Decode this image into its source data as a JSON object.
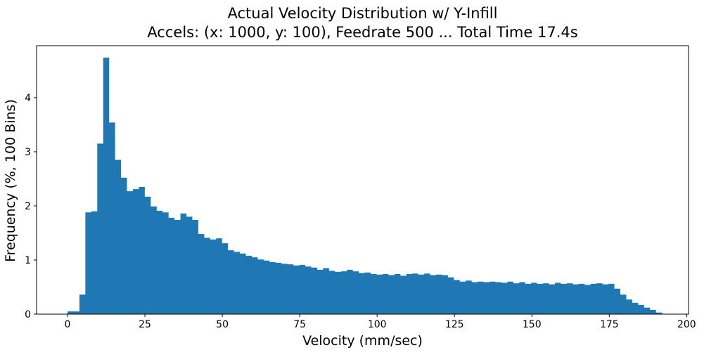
{
  "title": {
    "line1": "Actual Velocity Distribution w/ Y-Infill",
    "line2": "Accels: (x: 1000, y: 100), Feedrate 500 ... Total Time 17.4s"
  },
  "chart_data": {
    "type": "bar",
    "subtype": "histogram",
    "title": "Actual Velocity Distribution w/ Y-Infill",
    "subtitle": "Accels: (x: 1000, y: 100), Feedrate 500 ... Total Time 17.4s",
    "xlabel": "Velocity (mm/sec)",
    "ylabel": "Frequency (%, 100 Bins)",
    "bar_color": "#1f77b4",
    "axis_color": "#000000",
    "background_color": "#ffffff",
    "grid": false,
    "legend": false,
    "n_bins": 100,
    "bin_start": 0,
    "bin_width": 1.92,
    "xlim": [
      -10,
      200.6
    ],
    "ylim": [
      0,
      4.96
    ],
    "x_ticks": [
      0,
      25,
      50,
      75,
      100,
      125,
      150,
      175,
      200
    ],
    "y_ticks": [
      0,
      1,
      2,
      3,
      4
    ],
    "values": [
      0.05,
      0.05,
      0.36,
      1.88,
      1.9,
      3.15,
      4.74,
      3.54,
      2.85,
      2.52,
      2.27,
      2.31,
      2.35,
      2.17,
      1.99,
      1.91,
      1.88,
      1.78,
      1.74,
      1.86,
      1.8,
      1.74,
      1.48,
      1.41,
      1.38,
      1.4,
      1.31,
      1.18,
      1.15,
      1.12,
      1.08,
      1.05,
      1.01,
      0.99,
      0.96,
      0.95,
      0.93,
      0.92,
      0.9,
      0.91,
      0.88,
      0.86,
      0.82,
      0.85,
      0.8,
      0.78,
      0.79,
      0.82,
      0.79,
      0.76,
      0.77,
      0.74,
      0.73,
      0.74,
      0.72,
      0.74,
      0.71,
      0.74,
      0.75,
      0.73,
      0.75,
      0.72,
      0.73,
      0.72,
      0.68,
      0.63,
      0.6,
      0.62,
      0.59,
      0.6,
      0.59,
      0.6,
      0.59,
      0.58,
      0.6,
      0.57,
      0.59,
      0.56,
      0.58,
      0.56,
      0.57,
      0.55,
      0.58,
      0.56,
      0.57,
      0.55,
      0.56,
      0.54,
      0.56,
      0.57,
      0.55,
      0.56,
      0.47,
      0.36,
      0.27,
      0.21,
      0.17,
      0.12,
      0.08,
      0.03
    ]
  }
}
